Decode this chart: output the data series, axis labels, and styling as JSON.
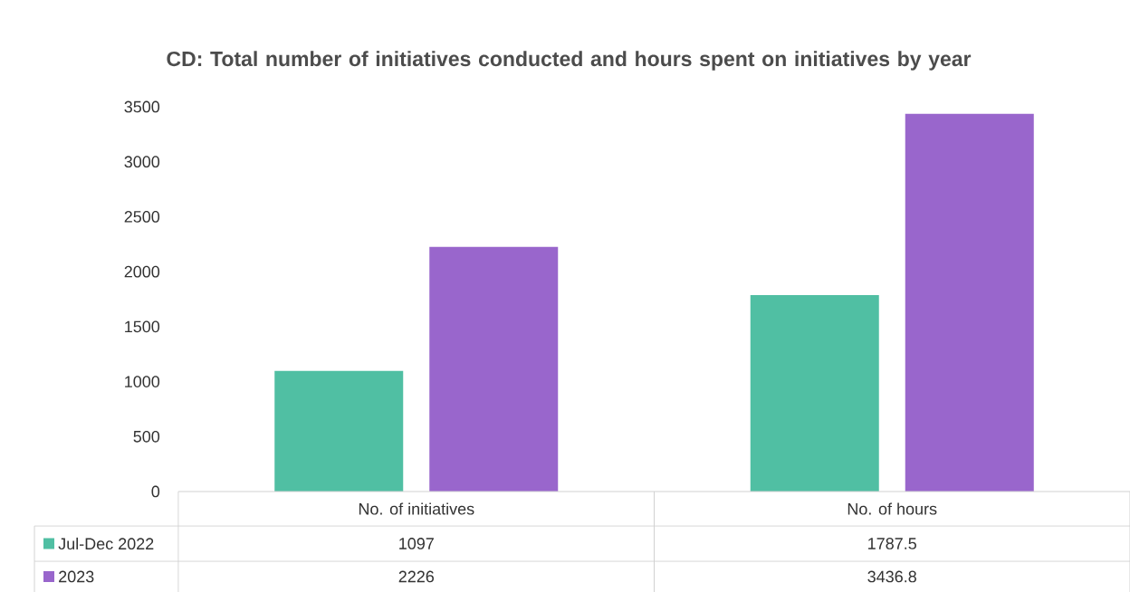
{
  "chart_data": {
    "type": "bar",
    "title": "CD: Total number of initiatives conducted and hours spent on initiatives by year",
    "categories": [
      "No. of initiatives",
      "No. of hours"
    ],
    "series": [
      {
        "name": "Jul-Dec 2022",
        "color": "#50bfa3",
        "values": [
          1097,
          1787.5
        ]
      },
      {
        "name": "2023",
        "color": "#9966cc",
        "values": [
          2226,
          3436.8
        ]
      }
    ],
    "ylim": [
      0,
      3500
    ],
    "yticks": [
      0,
      500,
      1000,
      1500,
      2000,
      2500,
      3000,
      3500
    ],
    "data_labels": true,
    "legend": "bottom"
  }
}
